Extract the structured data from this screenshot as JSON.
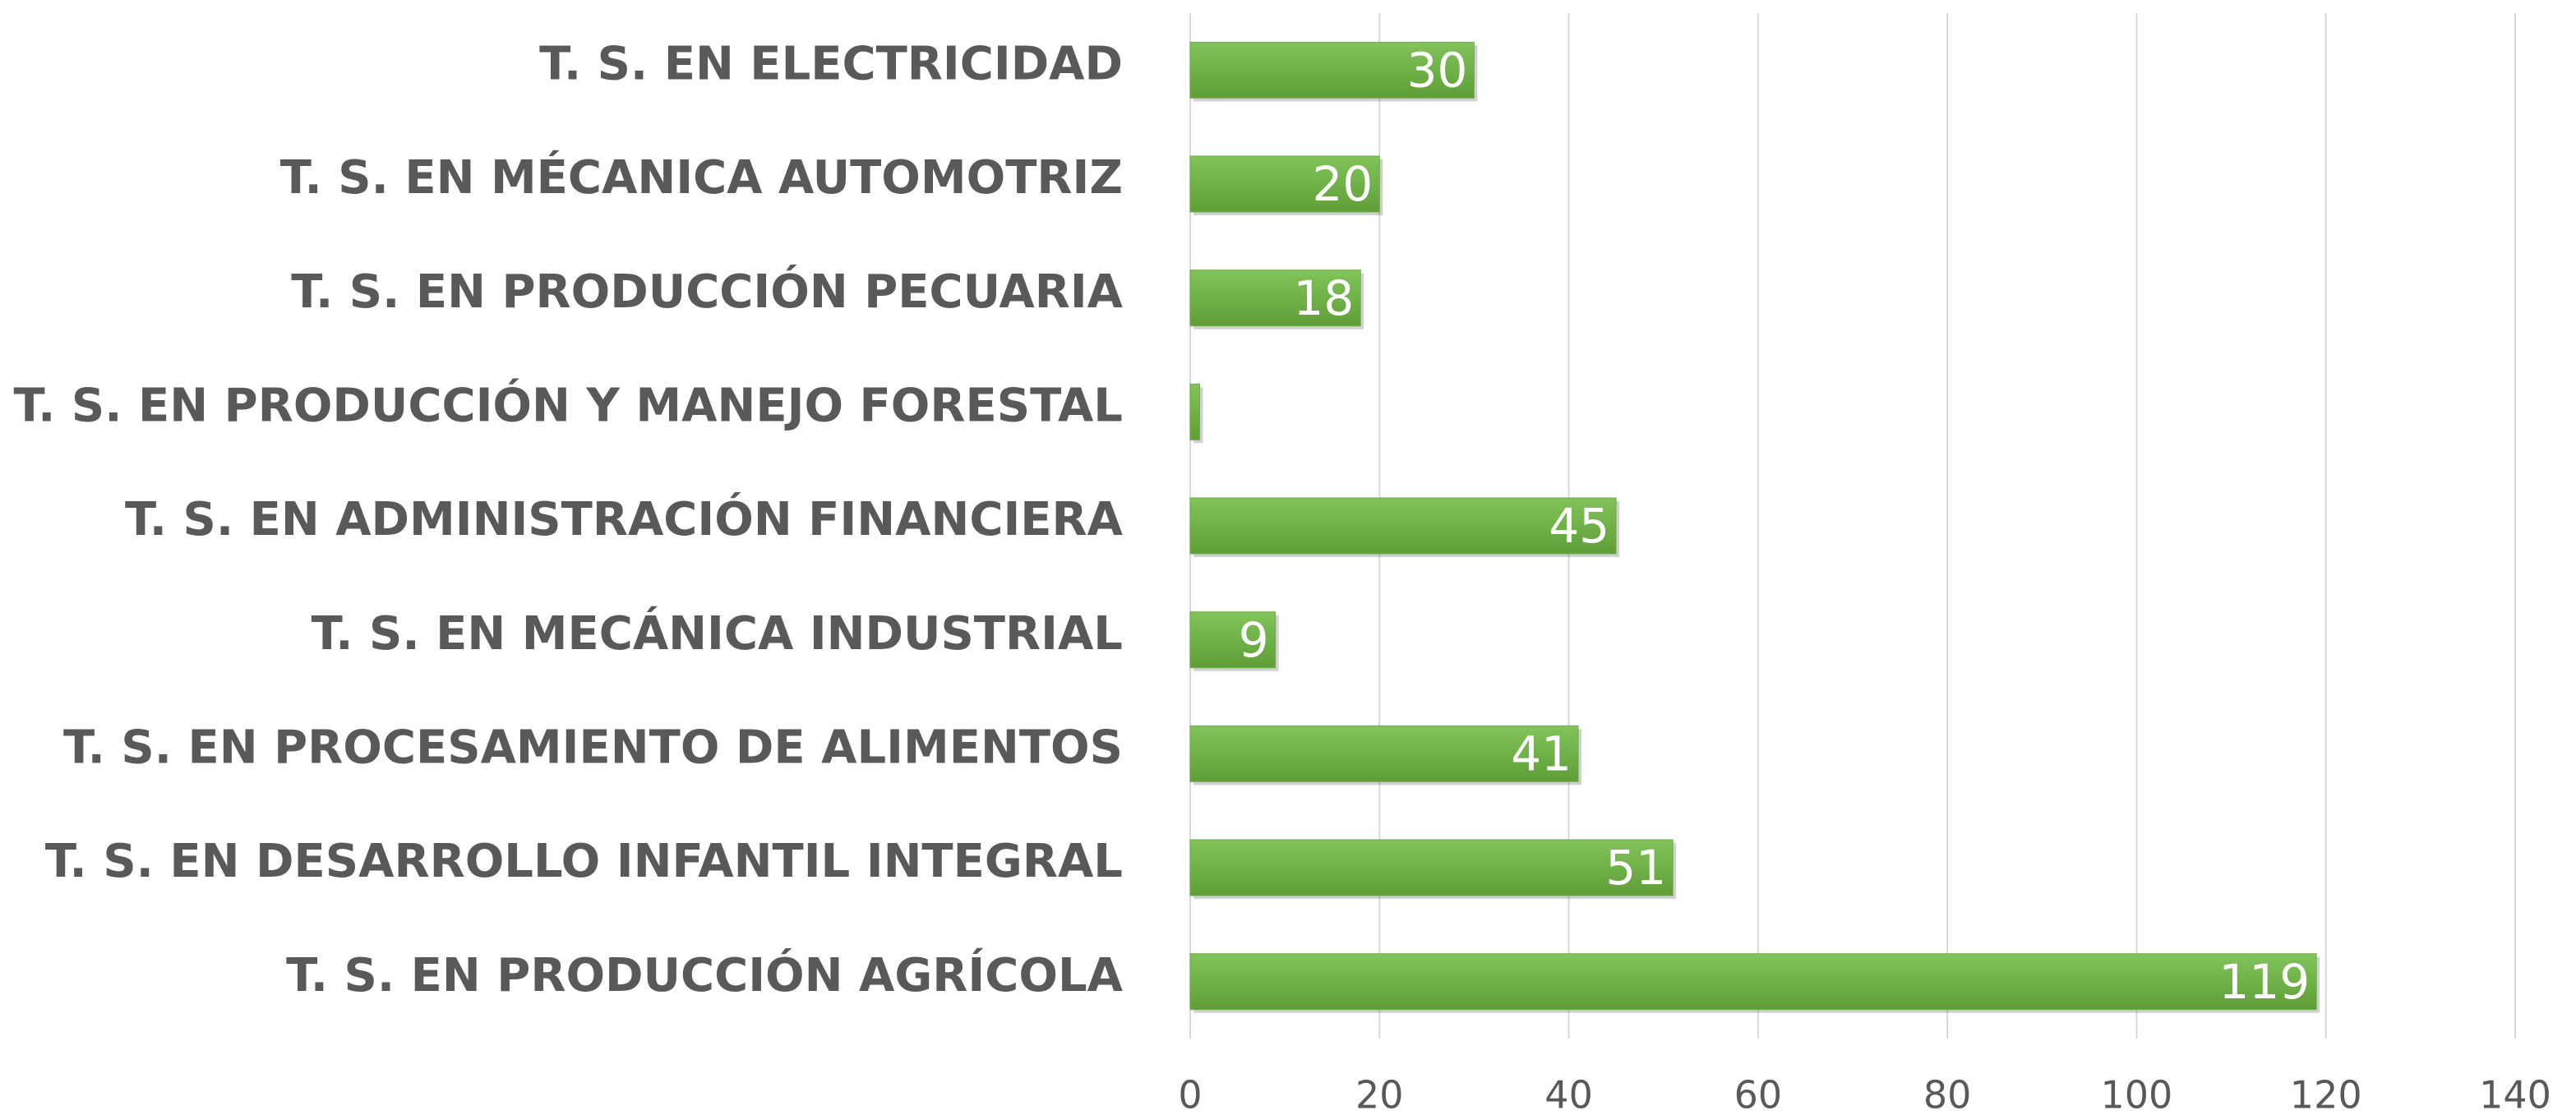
{
  "chart_data": {
    "type": "bar",
    "orientation": "horizontal",
    "categories": [
      "T. S. EN ELECTRICIDAD",
      "T. S. EN MÉCANICA AUTOMOTRIZ",
      "T. S. EN PRODUCCIÓN PECUARIA",
      "T. S. EN PRODUCCIÓN Y MANEJO FORESTAL",
      "T. S. EN ADMINISTRACIÓN FINANCIERA",
      "T. S. EN MECÁNICA INDUSTRIAL",
      "T. S. EN PROCESAMIENTO DE ALIMENTOS",
      "T. S. EN DESARROLLO INFANTIL INTEGRAL",
      "T. S. EN PRODUCCIÓN AGRÍCOLA"
    ],
    "values": [
      30,
      20,
      18,
      1,
      45,
      9,
      41,
      51,
      119
    ],
    "color": "#70ad47",
    "xlim": [
      0,
      140
    ],
    "xticks": [
      0,
      20,
      40,
      60,
      80,
      100,
      120,
      140
    ],
    "grid": true
  }
}
